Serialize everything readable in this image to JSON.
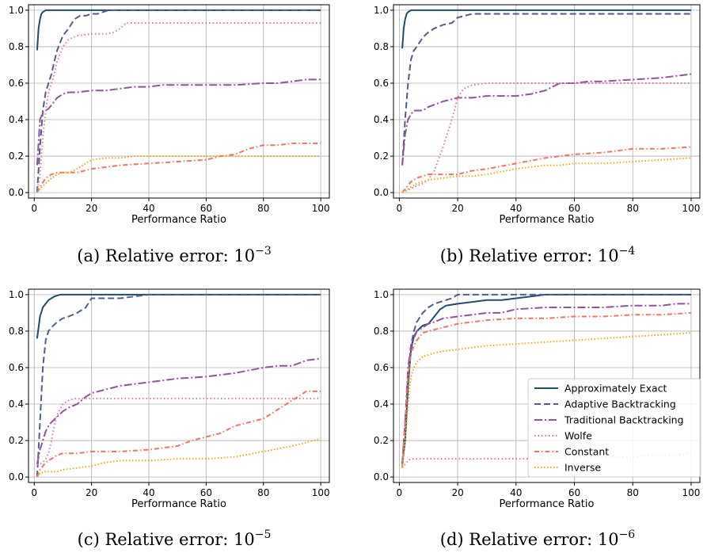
{
  "chart_data": [
    {
      "type": "line",
      "caption": {
        "prefix": "(a) Relative error: ",
        "base": "10",
        "exponent": "−3"
      },
      "xlabel": "Performance Ratio",
      "ylabel": "",
      "xlim": [
        -2,
        103
      ],
      "ylim": [
        -0.03,
        1.03
      ],
      "xticks": [
        "0",
        "20",
        "40",
        "60",
        "80",
        "100"
      ],
      "yticks": [
        "0.0",
        "0.2",
        "0.4",
        "0.6",
        "0.8",
        "1.0"
      ],
      "grid": true,
      "series": [
        {
          "name": "Approximately Exact",
          "x": [
            1,
            1.5,
            2,
            2.5,
            3,
            3.5,
            4,
            5,
            100
          ],
          "y": [
            0.78,
            0.9,
            0.95,
            0.98,
            0.99,
            0.995,
            1.0,
            1.0,
            1.0
          ]
        },
        {
          "name": "Adaptive Backtracking",
          "x": [
            1,
            2,
            3,
            4,
            5,
            6,
            7,
            8,
            10,
            12,
            14,
            16,
            18,
            20,
            22,
            24,
            26,
            100
          ],
          "y": [
            0.0,
            0.25,
            0.45,
            0.55,
            0.6,
            0.65,
            0.72,
            0.78,
            0.86,
            0.9,
            0.95,
            0.97,
            0.97,
            0.98,
            0.98,
            0.99,
            1.0,
            1.0
          ]
        },
        {
          "name": "Traditional Backtracking",
          "x": [
            1,
            2,
            3,
            4,
            5,
            6,
            8,
            10,
            12,
            15,
            20,
            25,
            30,
            35,
            40,
            45,
            50,
            60,
            70,
            80,
            85,
            90,
            95,
            100
          ],
          "y": [
            0.15,
            0.4,
            0.44,
            0.45,
            0.46,
            0.48,
            0.52,
            0.54,
            0.55,
            0.55,
            0.56,
            0.56,
            0.57,
            0.58,
            0.58,
            0.59,
            0.59,
            0.59,
            0.59,
            0.6,
            0.6,
            0.61,
            0.62,
            0.62
          ]
        },
        {
          "name": "Wolfe",
          "x": [
            1,
            2,
            3,
            4,
            5,
            6,
            7,
            8,
            10,
            12,
            15,
            20,
            25,
            28,
            30,
            32,
            35,
            100
          ],
          "y": [
            0.0,
            0.1,
            0.3,
            0.45,
            0.55,
            0.6,
            0.65,
            0.72,
            0.8,
            0.84,
            0.86,
            0.87,
            0.87,
            0.88,
            0.9,
            0.93,
            0.93,
            0.93
          ]
        },
        {
          "name": "Constant",
          "x": [
            1,
            2,
            4,
            6,
            8,
            10,
            15,
            20,
            25,
            30,
            40,
            50,
            60,
            65,
            70,
            75,
            80,
            85,
            90,
            95,
            100
          ],
          "y": [
            0.0,
            0.03,
            0.08,
            0.1,
            0.11,
            0.11,
            0.11,
            0.13,
            0.14,
            0.15,
            0.16,
            0.17,
            0.18,
            0.2,
            0.21,
            0.24,
            0.26,
            0.26,
            0.27,
            0.27,
            0.27
          ]
        },
        {
          "name": "Inverse",
          "x": [
            1,
            2,
            4,
            6,
            8,
            10,
            12,
            15,
            18,
            20,
            25,
            30,
            35,
            40,
            60,
            80,
            100
          ],
          "y": [
            0.0,
            0.02,
            0.05,
            0.08,
            0.1,
            0.11,
            0.11,
            0.13,
            0.16,
            0.18,
            0.19,
            0.19,
            0.2,
            0.2,
            0.2,
            0.2,
            0.2
          ]
        }
      ]
    },
    {
      "type": "line",
      "caption": {
        "prefix": "(b) Relative error: ",
        "base": "10",
        "exponent": "−4"
      },
      "xlabel": "Performance Ratio",
      "ylabel": "",
      "xlim": [
        -2,
        103
      ],
      "ylim": [
        -0.03,
        1.03
      ],
      "xticks": [
        "0",
        "20",
        "40",
        "60",
        "80",
        "100"
      ],
      "yticks": [
        "0.0",
        "0.2",
        "0.4",
        "0.6",
        "0.8",
        "1.0"
      ],
      "grid": true,
      "series": [
        {
          "name": "Approximately Exact",
          "x": [
            1,
            1.5,
            2,
            2.5,
            3,
            3.5,
            4,
            5,
            100
          ],
          "y": [
            0.79,
            0.9,
            0.95,
            0.98,
            0.99,
            0.995,
            1.0,
            1.0,
            1.0
          ]
        },
        {
          "name": "Adaptive Backtracking",
          "x": [
            1,
            2,
            3,
            4,
            5,
            6,
            8,
            10,
            12,
            15,
            18,
            20,
            25,
            100
          ],
          "y": [
            0.15,
            0.4,
            0.6,
            0.73,
            0.78,
            0.8,
            0.85,
            0.88,
            0.9,
            0.92,
            0.93,
            0.96,
            0.98,
            0.98
          ]
        },
        {
          "name": "Traditional Backtracking",
          "x": [
            1,
            2,
            3,
            4,
            5,
            8,
            10,
            15,
            20,
            25,
            30,
            40,
            45,
            50,
            55,
            60,
            65,
            70,
            80,
            90,
            95,
            100
          ],
          "y": [
            0.15,
            0.32,
            0.4,
            0.43,
            0.45,
            0.45,
            0.47,
            0.5,
            0.52,
            0.52,
            0.53,
            0.53,
            0.54,
            0.56,
            0.6,
            0.6,
            0.61,
            0.61,
            0.62,
            0.63,
            0.64,
            0.65
          ]
        },
        {
          "name": "Wolfe",
          "x": [
            1,
            5,
            8,
            10,
            12,
            15,
            18,
            20,
            22,
            25,
            30,
            100
          ],
          "y": [
            0.0,
            0.03,
            0.05,
            0.07,
            0.12,
            0.25,
            0.4,
            0.52,
            0.57,
            0.59,
            0.6,
            0.6
          ]
        },
        {
          "name": "Constant",
          "x": [
            1,
            2,
            4,
            6,
            8,
            10,
            15,
            20,
            25,
            30,
            40,
            50,
            60,
            70,
            80,
            90,
            100
          ],
          "y": [
            0.0,
            0.02,
            0.06,
            0.08,
            0.09,
            0.1,
            0.1,
            0.1,
            0.12,
            0.13,
            0.16,
            0.19,
            0.21,
            0.22,
            0.24,
            0.24,
            0.25
          ]
        },
        {
          "name": "Inverse",
          "x": [
            1,
            2,
            4,
            6,
            8,
            10,
            15,
            20,
            25,
            30,
            40,
            45,
            50,
            55,
            60,
            70,
            80,
            90,
            100
          ],
          "y": [
            0.0,
            0.01,
            0.03,
            0.05,
            0.06,
            0.07,
            0.08,
            0.09,
            0.09,
            0.1,
            0.13,
            0.14,
            0.15,
            0.15,
            0.16,
            0.16,
            0.17,
            0.18,
            0.19
          ]
        }
      ]
    },
    {
      "type": "line",
      "caption": {
        "prefix": "(c) Relative error: ",
        "base": "10",
        "exponent": "−5"
      },
      "xlabel": "Performance Ratio",
      "ylabel": "",
      "xlim": [
        -2,
        103
      ],
      "ylim": [
        -0.03,
        1.03
      ],
      "xticks": [
        "0",
        "20",
        "40",
        "60",
        "80",
        "100"
      ],
      "yticks": [
        "0.0",
        "0.2",
        "0.4",
        "0.6",
        "0.8",
        "1.0"
      ],
      "grid": true,
      "series": [
        {
          "name": "Approximately Exact",
          "x": [
            1,
            2,
            3,
            4,
            5,
            6,
            7,
            8,
            9,
            10,
            100
          ],
          "y": [
            0.76,
            0.88,
            0.93,
            0.95,
            0.97,
            0.98,
            0.99,
            0.995,
            1.0,
            1.0,
            1.0
          ]
        },
        {
          "name": "Adaptive Backtracking",
          "x": [
            1,
            2,
            3,
            4,
            5,
            6,
            8,
            10,
            12,
            15,
            18,
            20,
            25,
            30,
            35,
            40,
            100
          ],
          "y": [
            0.0,
            0.3,
            0.6,
            0.75,
            0.8,
            0.82,
            0.85,
            0.87,
            0.88,
            0.9,
            0.93,
            0.98,
            0.98,
            0.98,
            0.99,
            1.0,
            1.0
          ]
        },
        {
          "name": "Traditional Backtracking",
          "x": [
            1,
            2,
            3,
            4,
            5,
            6,
            8,
            10,
            12,
            15,
            18,
            20,
            25,
            30,
            35,
            40,
            45,
            50,
            60,
            70,
            80,
            85,
            90,
            95,
            100
          ],
          "y": [
            0.07,
            0.15,
            0.2,
            0.25,
            0.28,
            0.3,
            0.33,
            0.36,
            0.38,
            0.4,
            0.44,
            0.46,
            0.48,
            0.5,
            0.51,
            0.52,
            0.53,
            0.54,
            0.55,
            0.57,
            0.6,
            0.61,
            0.61,
            0.64,
            0.65
          ]
        },
        {
          "name": "Wolfe",
          "x": [
            1,
            2,
            3,
            4,
            5,
            6,
            7,
            8,
            10,
            12,
            14,
            100
          ],
          "y": [
            0.07,
            0.07,
            0.08,
            0.1,
            0.13,
            0.2,
            0.28,
            0.34,
            0.4,
            0.42,
            0.43,
            0.43
          ]
        },
        {
          "name": "Constant",
          "x": [
            1,
            2,
            4,
            6,
            8,
            10,
            15,
            20,
            30,
            40,
            50,
            55,
            60,
            65,
            70,
            75,
            80,
            85,
            90,
            95,
            100
          ],
          "y": [
            0.0,
            0.04,
            0.08,
            0.1,
            0.12,
            0.13,
            0.13,
            0.14,
            0.14,
            0.15,
            0.17,
            0.2,
            0.22,
            0.24,
            0.28,
            0.3,
            0.32,
            0.37,
            0.42,
            0.47,
            0.47
          ]
        },
        {
          "name": "Inverse",
          "x": [
            1,
            2,
            4,
            6,
            8,
            10,
            15,
            20,
            25,
            30,
            40,
            50,
            60,
            70,
            80,
            90,
            100
          ],
          "y": [
            0.0,
            0.02,
            0.03,
            0.03,
            0.03,
            0.04,
            0.05,
            0.06,
            0.08,
            0.09,
            0.09,
            0.1,
            0.1,
            0.11,
            0.14,
            0.17,
            0.21
          ]
        }
      ]
    },
    {
      "type": "line",
      "caption": {
        "prefix": "(d) Relative error: ",
        "base": "10",
        "exponent": "−6"
      },
      "xlabel": "Performance Ratio",
      "ylabel": "",
      "xlim": [
        -2,
        103
      ],
      "ylim": [
        -0.03,
        1.03
      ],
      "xticks": [
        "0",
        "20",
        "40",
        "60",
        "80",
        "100"
      ],
      "yticks": [
        "0.0",
        "0.2",
        "0.4",
        "0.6",
        "0.8",
        "1.0"
      ],
      "grid": true,
      "legend": {
        "position": "lower-right"
      },
      "series": [
        {
          "name": "Approximately Exact",
          "x": [
            1,
            2,
            3,
            4,
            5,
            6,
            8,
            10,
            12,
            14,
            16,
            20,
            25,
            30,
            35,
            40,
            45,
            50,
            100
          ],
          "y": [
            0.07,
            0.2,
            0.5,
            0.7,
            0.77,
            0.8,
            0.83,
            0.84,
            0.88,
            0.92,
            0.94,
            0.95,
            0.96,
            0.97,
            0.97,
            0.98,
            0.99,
            1.0,
            1.0
          ]
        },
        {
          "name": "Adaptive Backtracking",
          "x": [
            1,
            2,
            3,
            4,
            5,
            6,
            8,
            10,
            12,
            14,
            16,
            18,
            20,
            100
          ],
          "y": [
            0.07,
            0.3,
            0.55,
            0.72,
            0.8,
            0.85,
            0.9,
            0.93,
            0.95,
            0.96,
            0.97,
            0.98,
            1.0,
            1.0
          ]
        },
        {
          "name": "Traditional Backtracking",
          "x": [
            1,
            2,
            3,
            4,
            5,
            6,
            8,
            10,
            12,
            15,
            20,
            25,
            30,
            35,
            40,
            50,
            60,
            70,
            80,
            90,
            95,
            100
          ],
          "y": [
            0.07,
            0.3,
            0.6,
            0.72,
            0.76,
            0.8,
            0.82,
            0.84,
            0.85,
            0.87,
            0.88,
            0.89,
            0.9,
            0.9,
            0.92,
            0.93,
            0.93,
            0.93,
            0.94,
            0.94,
            0.95,
            0.95
          ]
        },
        {
          "name": "Wolfe",
          "x": [
            1,
            2,
            3,
            4,
            5,
            6,
            10,
            20,
            40,
            50,
            60,
            70,
            80,
            85,
            90,
            95,
            100
          ],
          "y": [
            0.05,
            0.07,
            0.09,
            0.1,
            0.1,
            0.1,
            0.1,
            0.1,
            0.1,
            0.1,
            0.11,
            0.11,
            0.11,
            0.12,
            0.12,
            0.12,
            0.13
          ]
        },
        {
          "name": "Constant",
          "x": [
            1,
            2,
            3,
            4,
            5,
            6,
            8,
            10,
            15,
            20,
            25,
            30,
            40,
            50,
            60,
            70,
            80,
            90,
            100
          ],
          "y": [
            0.05,
            0.3,
            0.55,
            0.68,
            0.72,
            0.75,
            0.79,
            0.8,
            0.82,
            0.84,
            0.85,
            0.86,
            0.87,
            0.87,
            0.88,
            0.88,
            0.89,
            0.89,
            0.9
          ]
        },
        {
          "name": "Inverse",
          "x": [
            1,
            2,
            3,
            4,
            5,
            6,
            8,
            10,
            12,
            15,
            20,
            25,
            30,
            40,
            50,
            60,
            70,
            80,
            90,
            100
          ],
          "y": [
            0.05,
            0.2,
            0.4,
            0.55,
            0.6,
            0.63,
            0.66,
            0.67,
            0.68,
            0.69,
            0.7,
            0.71,
            0.72,
            0.73,
            0.74,
            0.75,
            0.76,
            0.77,
            0.78,
            0.79
          ]
        }
      ]
    }
  ],
  "legend_labels": [
    "Approximately Exact",
    "Adaptive Backtracking",
    "Traditional Backtracking",
    "Wolfe",
    "Constant",
    "Inverse"
  ],
  "series_styles": [
    {
      "color": "#1d4e6b",
      "dash": "",
      "icon": "solid-line"
    },
    {
      "color": "#4e5f8a",
      "dash": "8,4",
      "icon": "dashed-line"
    },
    {
      "color": "#9451a0",
      "dash": "10,3,2,3",
      "icon": "dash-dot-line"
    },
    {
      "color": "#e9709a",
      "dash": "1.5,3",
      "icon": "dotted-line"
    },
    {
      "color": "#f3735f",
      "dash": "6,3,1.5,3",
      "icon": "dash-dot-line"
    },
    {
      "color": "#f4a60c",
      "dash": "1.5,2.5",
      "icon": "dotted-line"
    }
  ]
}
